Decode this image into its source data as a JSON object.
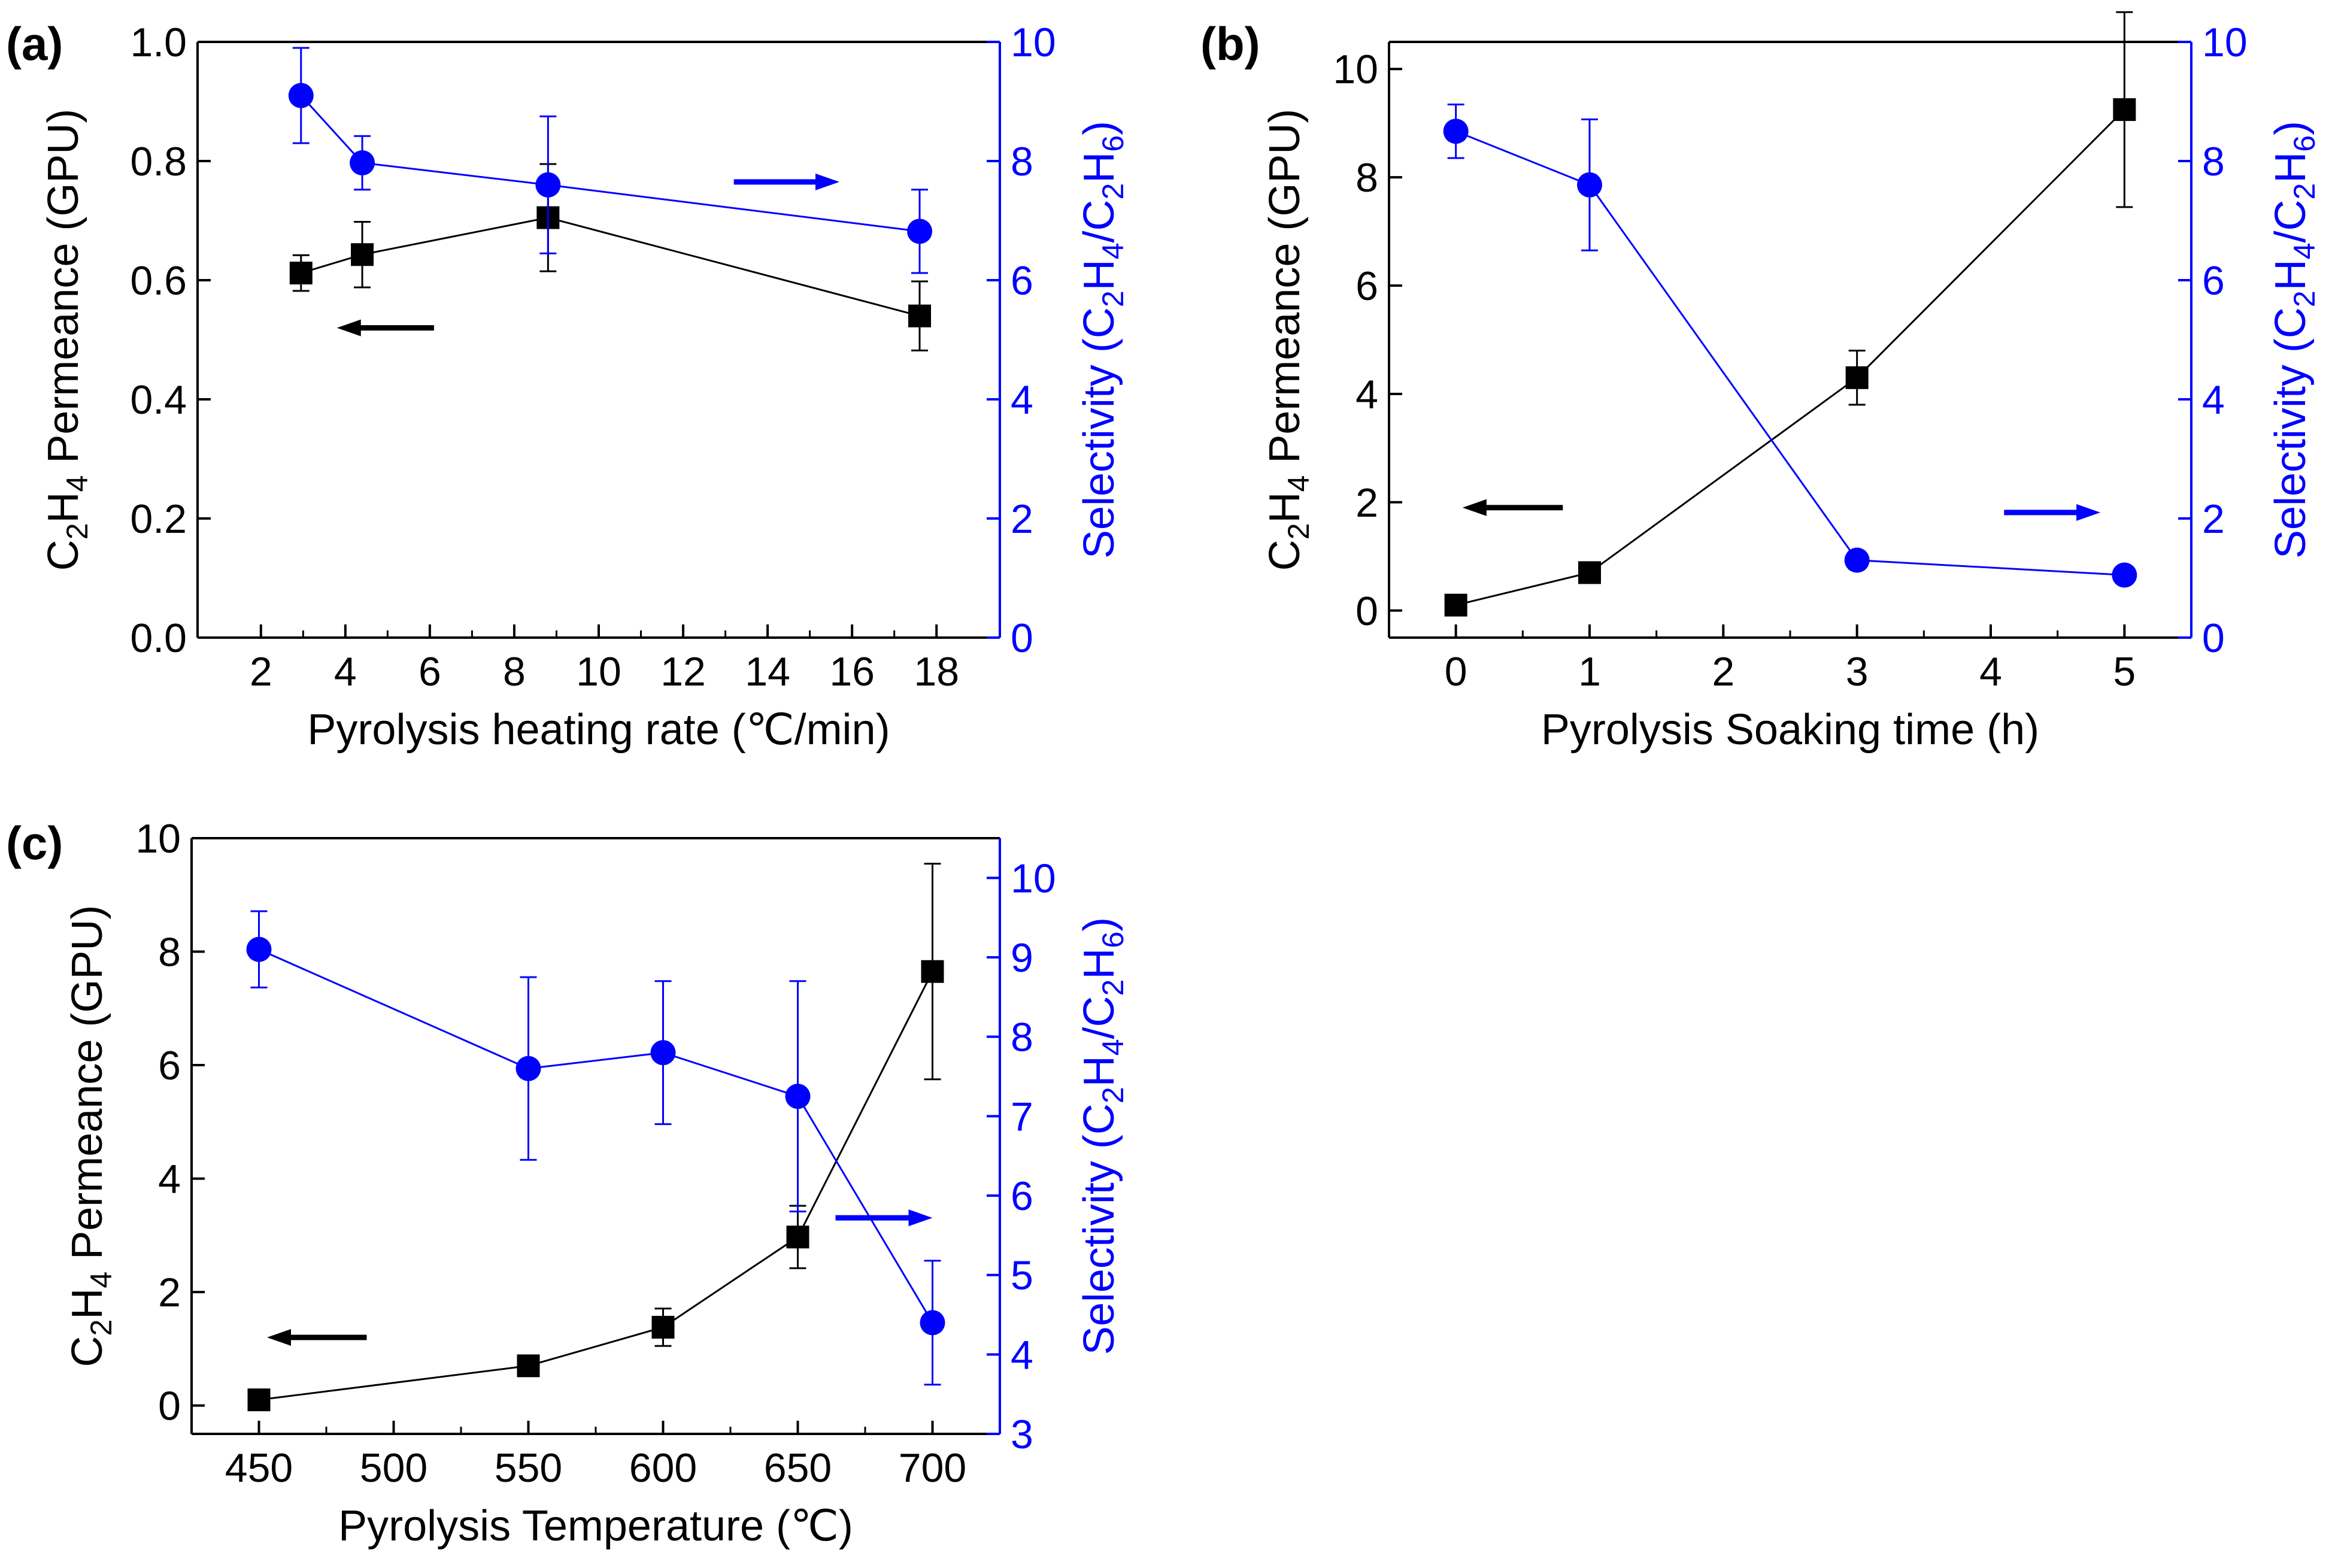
{
  "colors": {
    "left": "#000000",
    "right": "#0000ff"
  },
  "chart_data": [
    {
      "panel": "(a)",
      "type": "line",
      "x": [
        2.95,
        4.4,
        8.8,
        17.6
      ],
      "xlabel": "Pyrolysis heating rate (℃/min)",
      "xlim": [
        0.5,
        19.5
      ],
      "xticks": [
        2,
        4,
        6,
        8,
        10,
        12,
        14,
        16,
        18
      ],
      "ylabel_left": [
        "C",
        "2",
        "H",
        "4",
        " Permeance (GPU)"
      ],
      "ylim_left": [
        0.0,
        1.0
      ],
      "yticks_left": [
        "0.0",
        "0.2",
        "0.4",
        "0.6",
        "0.8",
        "1.0"
      ],
      "ylabel_right": [
        "Selectivity (C",
        "2",
        "H",
        "4",
        "/C",
        "2",
        "H",
        "6",
        ")"
      ],
      "ylim_right": [
        0,
        10
      ],
      "yticks_right": [
        "0",
        "2",
        "4",
        "6",
        "8",
        "10"
      ],
      "series": [
        {
          "name": "C2H4 permeance",
          "axis": "left",
          "marker": "square",
          "values": [
            0.612,
            0.643,
            0.705,
            0.54
          ],
          "errors": [
            0.03,
            0.055,
            0.09,
            0.058
          ]
        },
        {
          "name": "C2H4/C2H6 selectivity",
          "axis": "right",
          "marker": "circle",
          "values": [
            9.1,
            7.97,
            7.6,
            6.82
          ],
          "errors": [
            0.8,
            0.45,
            1.15,
            0.7
          ]
        }
      ],
      "arrows": [
        {
          "axis": "left",
          "direction": "left",
          "x_from": 6.1,
          "x_to": 3.8,
          "y": 0.52
        },
        {
          "axis": "right",
          "direction": "right",
          "x_from": 13.2,
          "x_to": 15.7,
          "y": 7.65
        }
      ]
    },
    {
      "panel": "(b)",
      "type": "line",
      "x": [
        0,
        1,
        3,
        5
      ],
      "xlabel": "Pyrolysis Soaking time (h)",
      "xlim": [
        -0.5,
        5.5
      ],
      "xticks": [
        0,
        1,
        2,
        3,
        4,
        5
      ],
      "ylabel_left": [
        "C",
        "2",
        "H",
        "4",
        " Permeance (GPU)"
      ],
      "ylim_left": [
        -0.5,
        10.5
      ],
      "yticks_left": [
        "0",
        "2",
        "4",
        "6",
        "8",
        "10"
      ],
      "ylabel_right": [
        "Selectivity (C",
        "2",
        "H",
        "4",
        "/C",
        "2",
        "H",
        "6",
        ")"
      ],
      "ylim_right": [
        0,
        10
      ],
      "yticks_right": [
        "0",
        "2",
        "4",
        "6",
        "8",
        "10"
      ],
      "series": [
        {
          "name": "C2H4 permeance",
          "axis": "left",
          "marker": "square",
          "values": [
            0.1,
            0.7,
            4.3,
            9.25
          ],
          "errors": [
            0.0,
            0.0,
            0.5,
            1.8
          ]
        },
        {
          "name": "C2H4/C2H6 selectivity",
          "axis": "right",
          "marker": "circle",
          "values": [
            8.5,
            7.6,
            1.3,
            1.05
          ],
          "errors": [
            0.45,
            1.1,
            0.15,
            0.0
          ]
        }
      ],
      "arrows": [
        {
          "axis": "left",
          "direction": "left",
          "x_from": 0.8,
          "x_to": 0.05,
          "y": 1.9
        },
        {
          "axis": "right",
          "direction": "right",
          "x_from": 4.1,
          "x_to": 4.82,
          "y": 2.1
        }
      ]
    },
    {
      "panel": "(c)",
      "type": "line",
      "x": [
        450,
        550,
        600,
        650,
        700
      ],
      "xlabel": "Pyrolysis Temperature (℃)",
      "xlim": [
        425,
        725
      ],
      "xticks": [
        450,
        500,
        550,
        600,
        650,
        700
      ],
      "ylabel_left": [
        "C",
        "2",
        "H",
        "4",
        " Permeance (GPU)"
      ],
      "ylim_left": [
        -0.5,
        10.0
      ],
      "yticks_left": [
        "0",
        "2",
        "4",
        "6",
        "8",
        "10"
      ],
      "ylabel_right": [
        "Selectivity (C",
        "2",
        "H",
        "4",
        "/C",
        "2",
        "H",
        "6",
        ")"
      ],
      "ylim_right": [
        3,
        10.5
      ],
      "yticks_right": [
        "3",
        "4",
        "5",
        "6",
        "7",
        "8",
        "9",
        "10"
      ],
      "series": [
        {
          "name": "C2H4 permeance",
          "axis": "left",
          "marker": "square",
          "values": [
            0.1,
            0.7,
            1.38,
            2.97,
            7.65
          ],
          "errors": [
            0.0,
            0.0,
            0.33,
            0.55,
            1.9
          ]
        },
        {
          "name": "C2H4/C2H6 selectivity",
          "axis": "right",
          "marker": "circle",
          "values": [
            9.1,
            7.6,
            7.8,
            7.25,
            4.4
          ],
          "errors": [
            0.48,
            1.15,
            0.9,
            1.45,
            0.78
          ]
        }
      ],
      "arrows": [
        {
          "axis": "left",
          "direction": "left",
          "x_from": 490,
          "x_to": 453,
          "y": 1.2
        },
        {
          "axis": "right",
          "direction": "right",
          "x_from": 664,
          "x_to": 700,
          "y": 5.72
        }
      ]
    }
  ]
}
